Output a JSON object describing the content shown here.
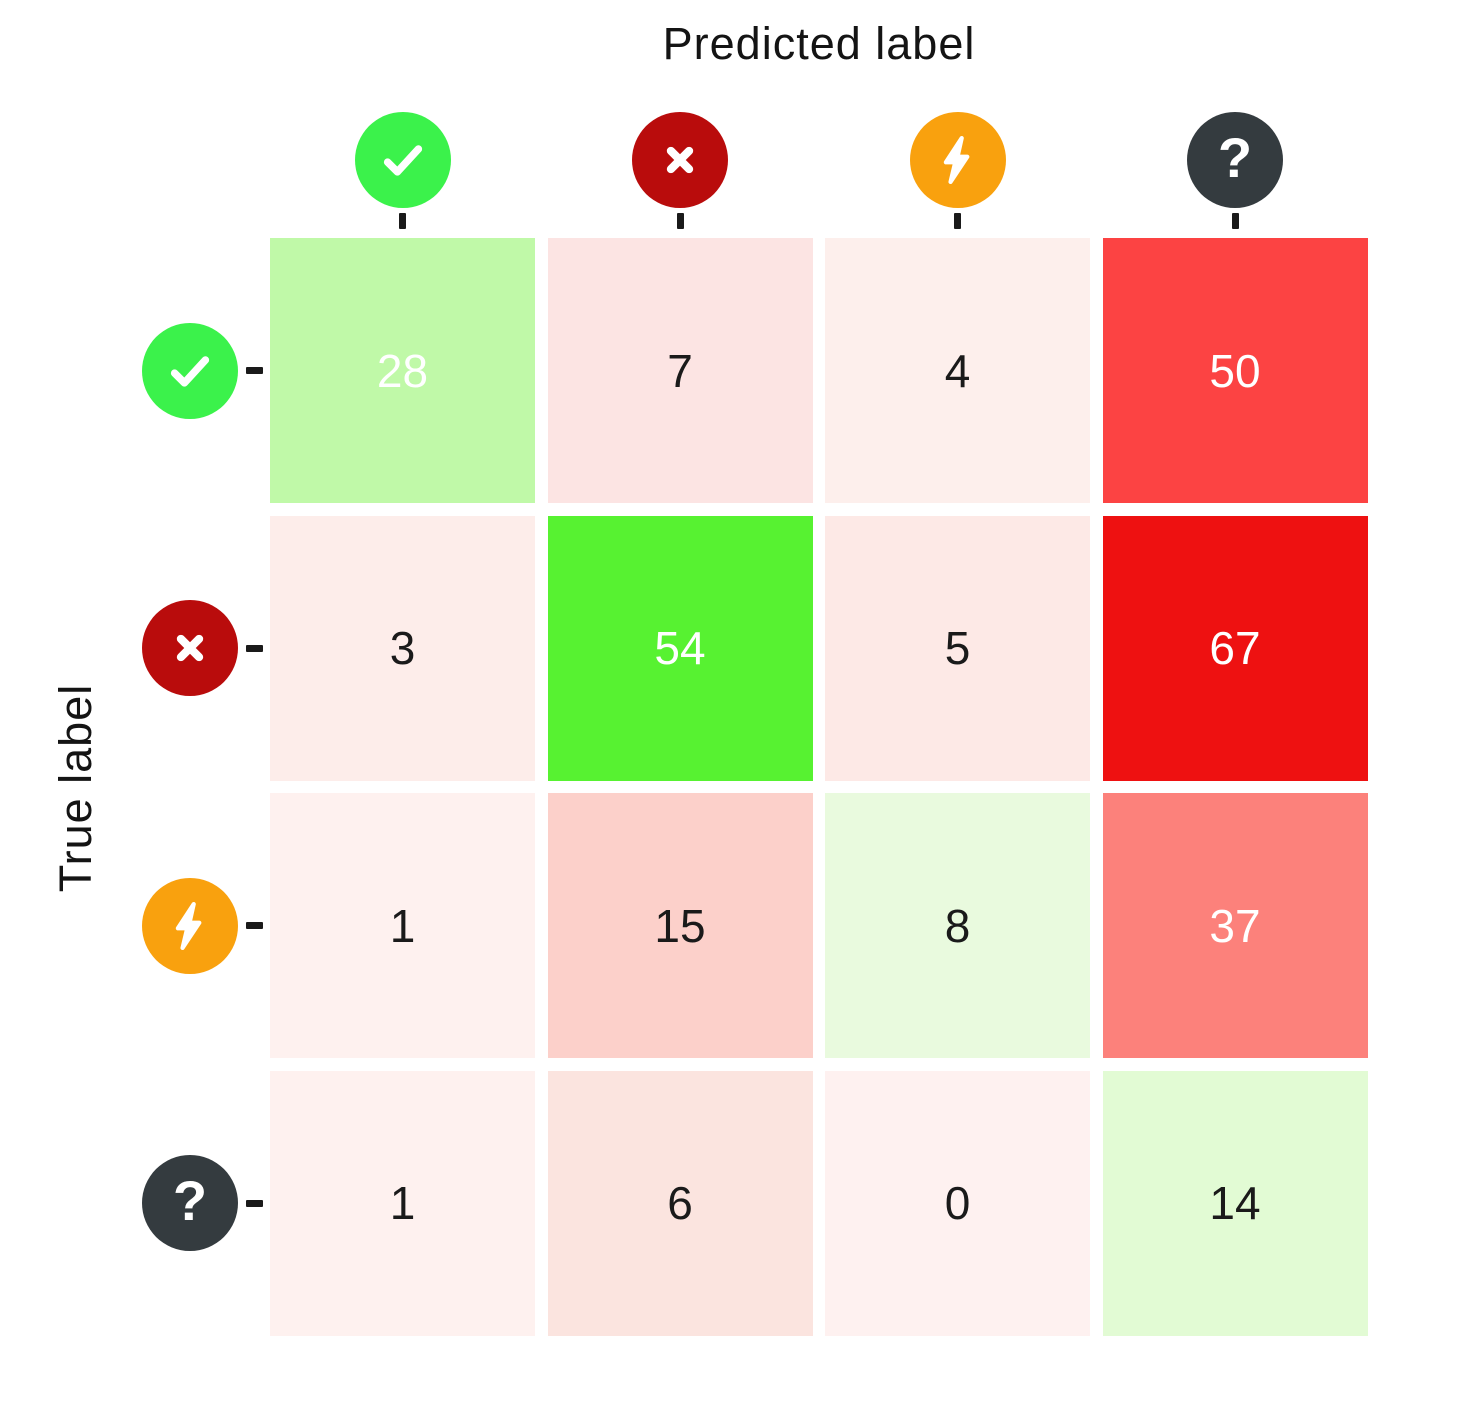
{
  "figure": {
    "xlabel": "Predicted label",
    "ylabel": "True label"
  },
  "chart_data": {
    "type": "heatmap",
    "subtype": "confusion-matrix",
    "xlabel": "Predicted label",
    "ylabel": "True label",
    "x_categories": [
      "check",
      "cross",
      "bolt",
      "question"
    ],
    "y_categories": [
      "check",
      "cross",
      "bolt",
      "question"
    ],
    "category_icons": [
      {
        "id": "check",
        "glyph": "check",
        "circle_color": "#3bf24b"
      },
      {
        "id": "cross",
        "glyph": "cross",
        "circle_color": "#b90c0c"
      },
      {
        "id": "bolt",
        "glyph": "bolt",
        "circle_color": "#f9a10e"
      },
      {
        "id": "question",
        "glyph": "question",
        "circle_color": "#343b3f"
      }
    ],
    "matrix": [
      [
        28,
        7,
        4,
        50
      ],
      [
        3,
        54,
        5,
        67
      ],
      [
        1,
        15,
        8,
        37
      ],
      [
        1,
        6,
        0,
        14
      ]
    ],
    "cell_colors": [
      [
        {
          "bg": "#c0f9a8",
          "fg": "#ffffff"
        },
        {
          "bg": "#fce4e3",
          "fg": "#1a1a1a"
        },
        {
          "bg": "#fdefec",
          "fg": "#1a1a1a"
        },
        {
          "bg": "#fc4343",
          "fg": "#ffffff"
        }
      ],
      [
        {
          "bg": "#fdedea",
          "fg": "#1a1a1a"
        },
        {
          "bg": "#57f231",
          "fg": "#ffffff"
        },
        {
          "bg": "#fde9e6",
          "fg": "#1a1a1a"
        },
        {
          "bg": "#ee1111",
          "fg": "#ffffff"
        }
      ],
      [
        {
          "bg": "#fef1ef",
          "fg": "#1a1a1a"
        },
        {
          "bg": "#fcd0ca",
          "fg": "#1a1a1a"
        },
        {
          "bg": "#e9fade",
          "fg": "#1a1a1a"
        },
        {
          "bg": "#fc817b",
          "fg": "#ffffff"
        }
      ],
      [
        {
          "bg": "#fef1ef",
          "fg": "#1a1a1a"
        },
        {
          "bg": "#fbe4df",
          "fg": "#1a1a1a"
        },
        {
          "bg": "#fef1f0",
          "fg": "#1a1a1a"
        },
        {
          "bg": "#e2fbd4",
          "fg": "#1a1a1a"
        }
      ]
    ],
    "legend_position": "none",
    "grid": "off",
    "tick_color": "#1a1a1a",
    "background": "#ffffff"
  }
}
